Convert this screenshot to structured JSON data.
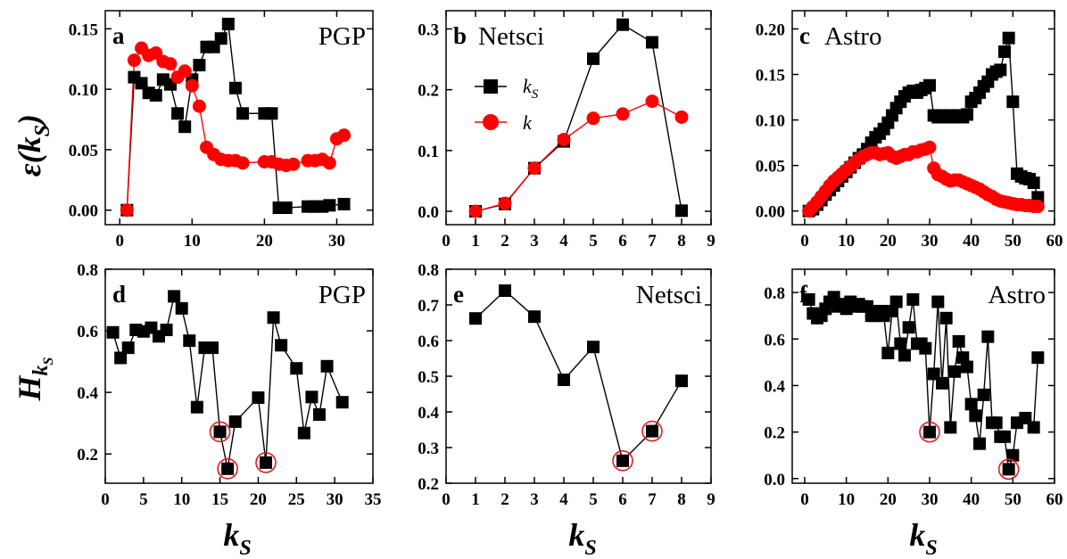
{
  "colors": {
    "ks_series": "#000000",
    "k_series": "#ff0000",
    "highlight": "#e31a1c"
  },
  "xlabel": {
    "main": "k",
    "sub": "S"
  },
  "ylabel_top": {
    "main": "ε(k",
    "sub": "S",
    "close": ")"
  },
  "ylabel_bottom": {
    "main": "H",
    "sub": "k",
    "subsub": "S"
  },
  "legend": {
    "ks_main": "k",
    "ks_sub": "S",
    "k": "k"
  },
  "chart_data": [
    {
      "panel": "a",
      "name": "PGP",
      "type": "line",
      "xlim": [
        -2,
        35
      ],
      "ylim": [
        -0.012,
        0.165
      ],
      "xticks": [
        0,
        10,
        20,
        30
      ],
      "yticks": [
        0.0,
        0.05,
        0.1,
        0.15
      ],
      "ytick_decimals": 2,
      "series": [
        {
          "key": "ks",
          "marker": "square",
          "color": "#000000",
          "x": [
            1,
            2,
            3,
            4,
            5,
            6,
            7,
            8,
            9,
            10,
            11,
            12,
            13,
            14,
            15,
            16,
            17,
            20,
            21,
            22,
            23,
            26,
            27,
            28,
            29,
            31
          ],
          "y": [
            0.0,
            0.11,
            0.105,
            0.097,
            0.095,
            0.108,
            0.104,
            0.08,
            0.069,
            0.108,
            0.12,
            0.135,
            0.135,
            0.142,
            0.154,
            0.101,
            0.08,
            0.08,
            0.08,
            0.002,
            0.002,
            0.003,
            0.003,
            0.003,
            0.004,
            0.005
          ]
        },
        {
          "key": "k",
          "marker": "circle",
          "color": "#ff0000",
          "x": [
            1,
            2,
            3,
            4,
            5,
            6,
            7,
            8,
            9,
            10,
            11,
            12,
            13,
            14,
            15,
            16,
            17,
            20,
            21,
            22,
            23,
            24,
            26,
            27,
            28,
            29,
            30,
            31
          ],
          "y": [
            0.0,
            0.124,
            0.134,
            0.128,
            0.13,
            0.123,
            0.121,
            0.11,
            0.115,
            0.103,
            0.086,
            0.052,
            0.046,
            0.042,
            0.041,
            0.041,
            0.039,
            0.04,
            0.04,
            0.038,
            0.037,
            0.038,
            0.041,
            0.041,
            0.042,
            0.039,
            0.059,
            0.062
          ]
        }
      ]
    },
    {
      "panel": "b",
      "name": "Netsci",
      "type": "line",
      "xlim": [
        0,
        9
      ],
      "ylim": [
        -0.022,
        0.33
      ],
      "xticks": [
        0,
        1,
        2,
        3,
        4,
        5,
        6,
        7,
        8,
        9
      ],
      "yticks": [
        0.0,
        0.1,
        0.2,
        0.3
      ],
      "ytick_decimals": 1,
      "series": [
        {
          "key": "ks",
          "marker": "square",
          "color": "#000000",
          "x": [
            1,
            2,
            3,
            4,
            5,
            6,
            7,
            8
          ],
          "y": [
            0.0,
            0.012,
            0.071,
            0.115,
            0.251,
            0.307,
            0.278,
            0.001
          ]
        },
        {
          "key": "k",
          "marker": "circle",
          "color": "#ff0000",
          "x": [
            1,
            2,
            3,
            4,
            5,
            6,
            7,
            8
          ],
          "y": [
            0.0,
            0.013,
            0.071,
            0.118,
            0.153,
            0.16,
            0.181,
            0.155
          ]
        }
      ]
    },
    {
      "panel": "c",
      "name": "Astro",
      "type": "line",
      "xlim": [
        -3,
        60
      ],
      "ylim": [
        -0.015,
        0.22
      ],
      "xticks": [
        0,
        10,
        20,
        30,
        40,
        50,
        60
      ],
      "yticks": [
        0.0,
        0.05,
        0.1,
        0.15,
        0.2
      ],
      "ytick_decimals": 2,
      "series": [
        {
          "key": "ks",
          "marker": "square",
          "color": "#000000",
          "x": [
            1,
            2,
            3,
            4,
            5,
            6,
            7,
            8,
            9,
            10,
            11,
            12,
            13,
            14,
            15,
            16,
            17,
            18,
            19,
            20,
            21,
            22,
            23,
            24,
            25,
            26,
            27,
            28,
            29,
            30,
            31,
            32,
            33,
            34,
            35,
            36,
            37,
            38,
            39,
            40,
            41,
            42,
            43,
            44,
            45,
            46,
            47,
            48,
            49,
            50,
            51,
            52,
            53,
            54,
            55,
            56
          ],
          "y": [
            0.0,
            0.002,
            0.007,
            0.012,
            0.018,
            0.023,
            0.028,
            0.033,
            0.038,
            0.043,
            0.048,
            0.053,
            0.058,
            0.062,
            0.068,
            0.075,
            0.081,
            0.085,
            0.09,
            0.097,
            0.105,
            0.113,
            0.12,
            0.126,
            0.13,
            0.132,
            0.13,
            0.133,
            0.135,
            0.138,
            0.105,
            0.103,
            0.105,
            0.103,
            0.105,
            0.103,
            0.105,
            0.103,
            0.106,
            0.12,
            0.124,
            0.13,
            0.137,
            0.142,
            0.15,
            0.153,
            0.155,
            0.175,
            0.19,
            0.12,
            0.041,
            0.038,
            0.036,
            0.035,
            0.031,
            0.015
          ]
        },
        {
          "key": "k",
          "marker": "circle",
          "color": "#ff0000",
          "x": [
            1,
            2,
            3,
            4,
            5,
            6,
            7,
            8,
            9,
            10,
            11,
            12,
            13,
            14,
            15,
            16,
            17,
            18,
            19,
            20,
            21,
            22,
            23,
            24,
            25,
            26,
            27,
            28,
            29,
            30,
            31,
            32,
            33,
            34,
            35,
            36,
            37,
            38,
            39,
            40,
            41,
            42,
            43,
            44,
            45,
            46,
            47,
            48,
            49,
            50,
            51,
            52,
            53,
            54,
            55,
            56
          ],
          "y": [
            0.0,
            0.005,
            0.01,
            0.016,
            0.022,
            0.028,
            0.033,
            0.037,
            0.041,
            0.045,
            0.049,
            0.053,
            0.057,
            0.06,
            0.062,
            0.064,
            0.064,
            0.062,
            0.063,
            0.064,
            0.06,
            0.058,
            0.06,
            0.062,
            0.062,
            0.065,
            0.065,
            0.067,
            0.068,
            0.07,
            0.047,
            0.04,
            0.038,
            0.035,
            0.033,
            0.034,
            0.034,
            0.032,
            0.03,
            0.028,
            0.026,
            0.024,
            0.021,
            0.018,
            0.016,
            0.013,
            0.011,
            0.01,
            0.009,
            0.008,
            0.007,
            0.007,
            0.006,
            0.006,
            0.005,
            0.005
          ]
        }
      ]
    },
    {
      "panel": "d",
      "name": "PGP",
      "type": "line",
      "xlim": [
        0,
        35
      ],
      "ylim": [
        0.105,
        0.8
      ],
      "xticks": [
        0,
        5,
        10,
        15,
        20,
        25,
        30,
        35
      ],
      "yticks": [
        0.2,
        0.4,
        0.6,
        0.8
      ],
      "ytick_decimals": 1,
      "series": [
        {
          "key": "ks",
          "marker": "square",
          "color": "#000000",
          "x": [
            1,
            2,
            3,
            4,
            5,
            6,
            7,
            8,
            9,
            10,
            11,
            12,
            13,
            14,
            15,
            16,
            17,
            20,
            21,
            22,
            23,
            25,
            26,
            27,
            28,
            29,
            31
          ],
          "y": [
            0.595,
            0.512,
            0.545,
            0.603,
            0.598,
            0.61,
            0.582,
            0.603,
            0.712,
            0.673,
            0.568,
            0.352,
            0.545,
            0.545,
            0.272,
            0.152,
            0.305,
            0.383,
            0.172,
            0.643,
            0.553,
            0.478,
            0.268,
            0.385,
            0.328,
            0.485,
            0.368
          ]
        }
      ],
      "highlights": [
        {
          "x": 15,
          "y": 0.272
        },
        {
          "x": 16,
          "y": 0.152
        },
        {
          "x": 21,
          "y": 0.172
        }
      ]
    },
    {
      "panel": "e",
      "name": "Netsci",
      "type": "line",
      "xlim": [
        0,
        9
      ],
      "ylim": [
        0.2,
        0.8
      ],
      "xticks": [
        0,
        1,
        2,
        3,
        4,
        5,
        6,
        7,
        8,
        9
      ],
      "yticks": [
        0.2,
        0.3,
        0.4,
        0.5,
        0.6,
        0.7,
        0.8
      ],
      "ytick_decimals": 1,
      "series": [
        {
          "key": "ks",
          "marker": "square",
          "color": "#000000",
          "x": [
            1,
            2,
            3,
            4,
            5,
            6,
            7,
            8
          ],
          "y": [
            0.662,
            0.74,
            0.667,
            0.49,
            0.582,
            0.263,
            0.346,
            0.487
          ]
        }
      ],
      "highlights": [
        {
          "x": 6,
          "y": 0.263
        },
        {
          "x": 7,
          "y": 0.346
        }
      ]
    },
    {
      "panel": "f",
      "name": "Astro",
      "type": "line",
      "xlim": [
        -3,
        60
      ],
      "ylim": [
        -0.02,
        0.9
      ],
      "xticks": [
        0,
        10,
        20,
        30,
        40,
        50,
        60
      ],
      "yticks": [
        0.0,
        0.2,
        0.4,
        0.6,
        0.8
      ],
      "ytick_decimals": 1,
      "series": [
        {
          "key": "ks",
          "marker": "square",
          "color": "#000000",
          "x": [
            1,
            2,
            3,
            4,
            5,
            6,
            7,
            8,
            9,
            10,
            11,
            12,
            13,
            14,
            15,
            16,
            17,
            18,
            19,
            20,
            21,
            22,
            23,
            24,
            25,
            26,
            27,
            28,
            29,
            30,
            31,
            32,
            33,
            34,
            35,
            36,
            37,
            38,
            39,
            40,
            41,
            42,
            43,
            44,
            45,
            46,
            47,
            48,
            49,
            50,
            51,
            53,
            55,
            56
          ],
          "y": [
            0.77,
            0.71,
            0.69,
            0.7,
            0.73,
            0.76,
            0.78,
            0.74,
            0.75,
            0.73,
            0.76,
            0.74,
            0.75,
            0.74,
            0.74,
            0.7,
            0.7,
            0.72,
            0.7,
            0.54,
            0.72,
            0.76,
            0.58,
            0.53,
            0.65,
            0.77,
            0.58,
            0.58,
            0.56,
            0.2,
            0.45,
            0.76,
            0.41,
            0.69,
            0.22,
            0.46,
            0.59,
            0.52,
            0.48,
            0.32,
            0.27,
            0.15,
            0.36,
            0.61,
            0.24,
            0.24,
            0.18,
            0.18,
            0.04,
            0.1,
            0.24,
            0.26,
            0.22,
            0.52
          ]
        }
      ],
      "highlights": [
        {
          "x": 30,
          "y": 0.2
        },
        {
          "x": 49,
          "y": 0.04
        }
      ]
    }
  ]
}
